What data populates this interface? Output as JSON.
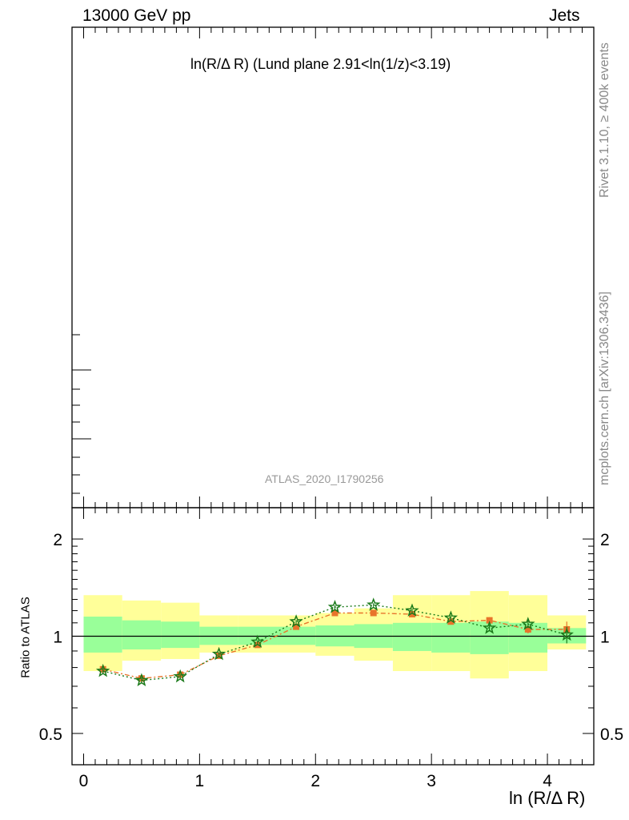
{
  "header": {
    "left": "13000 GeV pp",
    "right": "Jets"
  },
  "title": "ln(R/Δ R) (Lund plane 2.91<ln(1/z)<3.19)",
  "watermark": "ATLAS_2020_I1790256",
  "side_text": {
    "rivet": "Rivet 3.1.10, ≥ 400k events",
    "url": "mcplots.cern.ch [arXiv:1306.3436]"
  },
  "chart_data": {
    "type": "line",
    "xlabel": "ln (R/Δ R)",
    "ylabel": "Ratio to ATLAS",
    "xlim": [
      -0.1,
      4.4
    ],
    "ylim_log": [
      0.4,
      2.5
    ],
    "x_ticks": [
      "0",
      "1",
      "2",
      "3",
      "4"
    ],
    "y_ticks": [
      "0.5",
      "1",
      "2"
    ],
    "reference_line": 1,
    "bins": [
      {
        "lo": 0.0,
        "hi": 0.333,
        "band_inner": [
          0.89,
          1.15
        ],
        "band_outer": [
          0.78,
          1.34
        ]
      },
      {
        "lo": 0.333,
        "hi": 0.667,
        "band_inner": [
          0.91,
          1.12
        ],
        "band_outer": [
          0.84,
          1.29
        ]
      },
      {
        "lo": 0.667,
        "hi": 1.0,
        "band_inner": [
          0.92,
          1.11
        ],
        "band_outer": [
          0.85,
          1.27
        ]
      },
      {
        "lo": 1.0,
        "hi": 1.333,
        "band_inner": [
          0.94,
          1.07
        ],
        "band_outer": [
          0.89,
          1.16
        ]
      },
      {
        "lo": 1.333,
        "hi": 1.667,
        "band_inner": [
          0.94,
          1.07
        ],
        "band_outer": [
          0.89,
          1.16
        ]
      },
      {
        "lo": 1.667,
        "hi": 2.0,
        "band_inner": [
          0.94,
          1.07
        ],
        "band_outer": [
          0.89,
          1.16
        ]
      },
      {
        "lo": 2.0,
        "hi": 2.333,
        "band_inner": [
          0.93,
          1.08
        ],
        "band_outer": [
          0.87,
          1.18
        ]
      },
      {
        "lo": 2.333,
        "hi": 2.667,
        "band_inner": [
          0.92,
          1.09
        ],
        "band_outer": [
          0.84,
          1.22
        ]
      },
      {
        "lo": 2.667,
        "hi": 3.0,
        "band_inner": [
          0.9,
          1.1
        ],
        "band_outer": [
          0.78,
          1.34
        ]
      },
      {
        "lo": 3.0,
        "hi": 3.333,
        "band_inner": [
          0.89,
          1.1
        ],
        "band_outer": [
          0.78,
          1.34
        ]
      },
      {
        "lo": 3.333,
        "hi": 3.667,
        "band_inner": [
          0.88,
          1.11
        ],
        "band_outer": [
          0.74,
          1.38
        ]
      },
      {
        "lo": 3.667,
        "hi": 4.0,
        "band_inner": [
          0.89,
          1.1
        ],
        "band_outer": [
          0.78,
          1.34
        ]
      },
      {
        "lo": 4.0,
        "hi": 4.333,
        "band_inner": [
          0.95,
          1.06
        ],
        "band_outer": [
          0.91,
          1.16
        ]
      }
    ],
    "series": [
      {
        "color": "#e8742b",
        "marker": "square",
        "line_style": "dash-dot",
        "x": [
          0.167,
          0.5,
          0.833,
          1.167,
          1.5,
          1.833,
          2.167,
          2.5,
          2.833,
          3.167,
          3.5,
          3.833,
          4.167
        ],
        "y": [
          0.79,
          0.74,
          0.76,
          0.87,
          0.94,
          1.07,
          1.18,
          1.18,
          1.17,
          1.11,
          1.12,
          1.05,
          1.05
        ],
        "err": [
          0.015,
          0.015,
          0.012,
          0.012,
          0.012,
          0.012,
          0.015,
          0.015,
          0.018,
          0.02,
          0.025,
          0.03,
          0.06
        ]
      },
      {
        "color": "#1a7a1a",
        "marker": "star",
        "line_style": "dotted",
        "x": [
          0.167,
          0.5,
          0.833,
          1.167,
          1.5,
          1.833,
          2.167,
          2.5,
          2.833,
          3.167,
          3.5,
          3.833,
          4.167
        ],
        "y": [
          0.78,
          0.73,
          0.75,
          0.88,
          0.96,
          1.11,
          1.23,
          1.25,
          1.2,
          1.14,
          1.06,
          1.09,
          1.01
        ],
        "err": [
          0.015,
          0.015,
          0.012,
          0.012,
          0.012,
          0.012,
          0.015,
          0.015,
          0.018,
          0.02,
          0.025,
          0.03,
          0.06
        ]
      }
    ]
  },
  "colors": {
    "band_inner": "#99ff99",
    "band_outer": "#ffff99",
    "frame": "#000000"
  }
}
